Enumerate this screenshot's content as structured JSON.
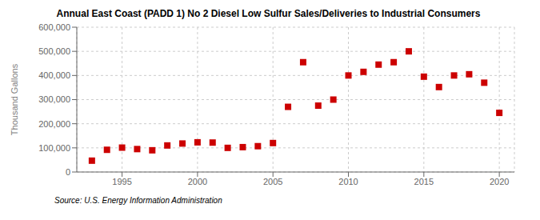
{
  "chart_data": {
    "type": "scatter",
    "title": "Annual East Coast (PADD 1) No 2 Diesel Low Sulfur Sales/Deliveries to Industrial Consumers",
    "ylabel": "Thousand Gallons",
    "annotations": [
      "Source: U.S. Energy Information Administration"
    ],
    "x": [
      1993,
      1994,
      1995,
      1996,
      1997,
      1998,
      1999,
      2000,
      2001,
      2002,
      2003,
      2004,
      2005,
      2006,
      2007,
      2008,
      2009,
      2010,
      2011,
      2012,
      2013,
      2014,
      2015,
      2016,
      2017,
      2018,
      2019,
      2020
    ],
    "values": [
      47000,
      92000,
      101000,
      95000,
      90000,
      110000,
      118000,
      123000,
      122000,
      100000,
      103000,
      107000,
      120000,
      270000,
      455000,
      275000,
      300000,
      400000,
      415000,
      445000,
      455000,
      500000,
      395000,
      352000,
      400000,
      405000,
      370000,
      245000
    ],
    "color": "#cc0000",
    "marker": "square",
    "xlim": [
      1992,
      2021
    ],
    "xticks": [
      1995,
      2000,
      2005,
      2010,
      2015,
      2020
    ],
    "ylim": [
      0,
      600000
    ],
    "yticks": [
      0,
      {
        "value": 100000,
        "label": "100,000"
      },
      {
        "value": 200000,
        "label": "200,000"
      },
      {
        "value": 300000,
        "label": "300,000"
      },
      {
        "value": 400000,
        "label": "400,000"
      },
      {
        "value": 500000,
        "label": "500,000"
      },
      {
        "value": 600000,
        "label": "600,000"
      }
    ],
    "grid": true
  }
}
